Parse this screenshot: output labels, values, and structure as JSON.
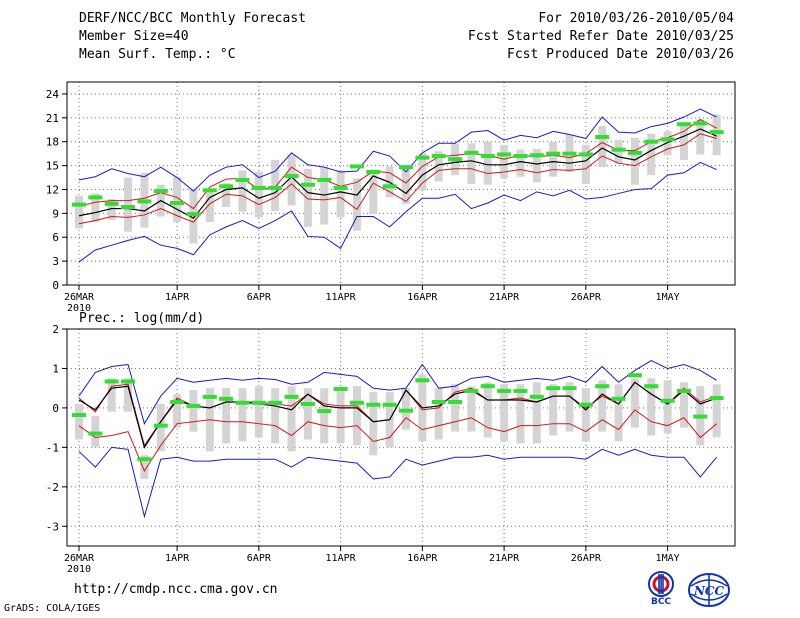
{
  "header": {
    "title": "DERF/NCC/BCC Monthly Forecast",
    "member_size": "Member Size=40",
    "variable": "Mean Surf. Temp.: °C",
    "period": "For 2010/03/26-2010/05/04",
    "started": "Fcst Started Refer Date 2010/03/25",
    "produced": "Fcst Produced Date 2010/03/26"
  },
  "footer": {
    "url": "http://cmdp.ncc.cma.gov.cn",
    "grads": "GrADS: COLA/IGES",
    "logo_bcc": "BCC",
    "logo_ncc": "NCC"
  },
  "colors": {
    "envelope": "#1a1acc",
    "bound": "#cc1a1a",
    "mean": "#000000",
    "obs": "#33dd33",
    "box": "#d4d4d4"
  },
  "chart_data": [
    {
      "type": "line",
      "title": "Mean Surf. Temp.: °C",
      "x_ticks": [
        "26MAR",
        "1APR",
        "6APR",
        "11APR",
        "16APR",
        "21APR",
        "26APR",
        "1MAY"
      ],
      "x_tick_days": [
        1,
        7,
        12,
        17,
        22,
        27,
        32,
        37
      ],
      "x_sub": "2010",
      "y_ticks": [
        0,
        3,
        6,
        9,
        12,
        15,
        18,
        21,
        24
      ],
      "ylim": [
        0,
        25.5
      ],
      "days": [
        1,
        2,
        3,
        4,
        5,
        6,
        7,
        8,
        9,
        10,
        11,
        12,
        13,
        14,
        15,
        16,
        17,
        18,
        19,
        20,
        21,
        22,
        23,
        24,
        25,
        26,
        27,
        28,
        29,
        30,
        31,
        32,
        33,
        34,
        35,
        36,
        37,
        38,
        39,
        40
      ],
      "series": [
        {
          "name": "max",
          "values": [
            13.2,
            13.6,
            14.6,
            14.0,
            13.6,
            14.8,
            13.5,
            11.8,
            13.8,
            14.8,
            15.1,
            13.5,
            14.3,
            16.6,
            15.1,
            14.8,
            14.2,
            14.3,
            16.8,
            16.2,
            14.2,
            16.6,
            17.8,
            17.8,
            19.2,
            19.4,
            18.2,
            18.8,
            18.5,
            19.3,
            18.9,
            18.4,
            21.1,
            19.2,
            19.1,
            19.9,
            20.3,
            21.1,
            22.1,
            21.1
          ]
        },
        {
          "name": "upper",
          "values": [
            9.9,
            10.4,
            10.6,
            10.6,
            10.9,
            11.6,
            11.0,
            9.6,
            12.3,
            13.3,
            13.4,
            12.0,
            12.3,
            14.8,
            13.5,
            13.2,
            12.4,
            12.9,
            14.3,
            14.1,
            12.8,
            14.9,
            16.1,
            16.3,
            16.5,
            16.3,
            15.8,
            16.3,
            16.1,
            16.3,
            16.0,
            16.5,
            17.9,
            16.9,
            16.9,
            18.0,
            18.5,
            19.3,
            20.8,
            19.7
          ]
        },
        {
          "name": "mean",
          "values": [
            8.7,
            9.1,
            9.6,
            9.6,
            9.3,
            10.6,
            9.5,
            8.4,
            11.0,
            12.0,
            12.2,
            10.9,
            11.6,
            13.6,
            11.6,
            11.3,
            11.7,
            11.3,
            13.7,
            12.9,
            11.5,
            13.8,
            15.1,
            15.4,
            15.6,
            15.1,
            15.1,
            15.5,
            15.2,
            15.5,
            15.3,
            15.6,
            17.2,
            16.1,
            15.7,
            16.9,
            17.9,
            18.7,
            19.6,
            18.7
          ]
        },
        {
          "name": "lower",
          "values": [
            7.7,
            8.1,
            8.6,
            8.5,
            8.8,
            9.6,
            8.7,
            7.9,
            10.2,
            11.4,
            11.2,
            10.1,
            11.0,
            12.7,
            10.8,
            10.7,
            11.0,
            9.5,
            12.8,
            11.7,
            10.5,
            12.8,
            14.4,
            14.6,
            14.6,
            14.0,
            14.2,
            14.5,
            14.1,
            14.5,
            14.4,
            14.6,
            16.2,
            15.3,
            15.0,
            16.1,
            17.1,
            17.6,
            19.0,
            18.4
          ]
        },
        {
          "name": "min",
          "values": [
            2.9,
            4.4,
            5.0,
            5.6,
            6.1,
            5.0,
            4.6,
            3.8,
            6.3,
            7.3,
            8.1,
            7.1,
            8.1,
            9.3,
            6.1,
            6.0,
            4.6,
            8.6,
            8.6,
            7.3,
            9.2,
            10.9,
            10.9,
            11.4,
            9.6,
            10.3,
            11.3,
            10.6,
            11.7,
            11.2,
            11.9,
            10.8,
            11.0,
            11.5,
            12.0,
            12.1,
            13.8,
            14.1,
            15.4,
            14.5
          ]
        },
        {
          "name": "box_high",
          "values": [
            11.2,
            11.5,
            10.8,
            13.5,
            14.1,
            12.6,
            13.6,
            12.1,
            12.0,
            12.8,
            14.4,
            14.2,
            15.7,
            16.4,
            14.6,
            14.9,
            14.4,
            13.4,
            14.5,
            14.9,
            15.1,
            16.6,
            16.8,
            17.8,
            17.8,
            18.0,
            17.6,
            17.0,
            17.1,
            18.0,
            18.9,
            17.6,
            20.0,
            18.2,
            18.5,
            19.0,
            19.3,
            20.2,
            20.8,
            21.4
          ]
        },
        {
          "name": "box_low",
          "values": [
            7.1,
            7.9,
            8.2,
            6.7,
            7.2,
            8.6,
            7.9,
            5.2,
            7.9,
            9.8,
            9.2,
            8.5,
            9.3,
            10.0,
            7.3,
            7.6,
            8.5,
            6.8,
            8.9,
            11.0,
            10.2,
            11.9,
            13.0,
            13.8,
            12.7,
            12.6,
            13.4,
            13.6,
            12.9,
            13.6,
            14.2,
            12.7,
            14.8,
            15.2,
            12.6,
            13.8,
            16.3,
            15.7,
            16.4,
            16.3
          ]
        },
        {
          "name": "observed",
          "values": [
            10.1,
            11.0,
            10.2,
            9.8,
            10.5,
            11.8,
            10.3,
            8.9,
            11.9,
            12.4,
            13.2,
            12.2,
            12.2,
            13.7,
            12.6,
            13.2,
            12.2,
            14.9,
            14.2,
            12.4,
            14.8,
            16.0,
            16.2,
            15.8,
            16.6,
            16.2,
            16.4,
            16.2,
            16.3,
            16.5,
            16.5,
            16.4,
            18.6,
            17.0,
            16.6,
            18.0,
            18.3,
            20.2,
            20.3,
            19.2
          ]
        }
      ]
    },
    {
      "type": "line",
      "title": "Prec.: log(mm/d)",
      "x_ticks": [
        "26MAR",
        "1APR",
        "6APR",
        "11APR",
        "16APR",
        "21APR",
        "26APR",
        "1MAY"
      ],
      "x_tick_days": [
        1,
        7,
        12,
        17,
        22,
        27,
        32,
        37
      ],
      "x_sub": "2010",
      "y_ticks": [
        -3,
        -2,
        -1,
        0,
        1,
        2
      ],
      "ylim": [
        -3.5,
        2
      ],
      "days": [
        1,
        2,
        3,
        4,
        5,
        6,
        7,
        8,
        9,
        10,
        11,
        12,
        13,
        14,
        15,
        16,
        17,
        18,
        19,
        20,
        21,
        22,
        23,
        24,
        25,
        26,
        27,
        28,
        29,
        30,
        31,
        32,
        33,
        34,
        35,
        36,
        37,
        38,
        39,
        40
      ],
      "series": [
        {
          "name": "max",
          "values": [
            0.3,
            0.9,
            1.05,
            1.1,
            -0.4,
            0.3,
            0.75,
            0.65,
            0.7,
            0.75,
            0.7,
            0.75,
            0.72,
            0.6,
            0.65,
            0.9,
            0.85,
            0.8,
            0.5,
            0.45,
            0.5,
            1.1,
            0.5,
            0.55,
            0.75,
            0.8,
            0.65,
            0.7,
            0.75,
            0.7,
            0.8,
            0.65,
            1.05,
            0.65,
            0.95,
            1.2,
            1.0,
            1.1,
            0.95,
            0.7
          ]
        },
        {
          "name": "upper",
          "values": [
            0.25,
            -0.1,
            0.55,
            0.6,
            -0.95,
            -0.35,
            0.25,
            0.05,
            0.0,
            0.15,
            0.15,
            0.15,
            0.1,
            0.05,
            0.35,
            0.1,
            0.05,
            0.05,
            -0.35,
            -0.3,
            0.45,
            -0.05,
            0.0,
            0.4,
            0.5,
            0.2,
            0.2,
            0.25,
            0.15,
            0.3,
            0.3,
            0.0,
            0.3,
            0.1,
            0.65,
            0.35,
            0.1,
            0.5,
            0.15,
            0.3
          ]
        },
        {
          "name": "mean",
          "values": [
            0.2,
            -0.05,
            0.5,
            0.55,
            -1.0,
            -0.35,
            0.2,
            0.05,
            0.0,
            0.15,
            0.15,
            0.1,
            0.05,
            -0.05,
            0.35,
            0.05,
            0.0,
            0.0,
            -0.35,
            -0.3,
            0.45,
            0.0,
            0.05,
            0.35,
            0.45,
            0.2,
            0.2,
            0.2,
            0.15,
            0.3,
            0.3,
            -0.05,
            0.35,
            0.1,
            0.65,
            0.35,
            0.1,
            0.45,
            0.1,
            0.25
          ]
        },
        {
          "name": "lower",
          "values": [
            -0.45,
            -0.75,
            -0.7,
            -0.6,
            -1.6,
            -0.95,
            -0.4,
            -0.35,
            -0.3,
            -0.35,
            -0.35,
            -0.4,
            -0.45,
            -0.7,
            -0.35,
            -0.45,
            -0.5,
            -0.45,
            -0.85,
            -0.75,
            -0.25,
            -0.55,
            -0.45,
            -0.35,
            -0.25,
            -0.5,
            -0.6,
            -0.45,
            -0.45,
            -0.4,
            -0.4,
            -0.6,
            -0.3,
            -0.55,
            -0.05,
            -0.35,
            -0.45,
            -0.25,
            -0.75,
            -0.4
          ]
        },
        {
          "name": "min",
          "values": [
            -1.1,
            -1.5,
            -1.0,
            -1.05,
            -2.75,
            -1.3,
            -1.25,
            -1.35,
            -1.35,
            -1.3,
            -1.3,
            -1.3,
            -1.3,
            -1.5,
            -1.25,
            -1.3,
            -1.35,
            -1.4,
            -1.8,
            -1.75,
            -1.3,
            -1.45,
            -1.35,
            -1.25,
            -1.25,
            -1.2,
            -1.3,
            -1.25,
            -1.25,
            -1.25,
            -1.25,
            -1.3,
            -1.05,
            -1.2,
            -1.05,
            -1.2,
            -1.25,
            -1.25,
            -1.75,
            -1.25
          ]
        },
        {
          "name": "box_high",
          "values": [
            0.1,
            -0.2,
            0.75,
            0.75,
            -1.2,
            0.1,
            0.35,
            0.45,
            0.5,
            0.5,
            0.5,
            0.55,
            0.5,
            0.55,
            0.5,
            0.5,
            0.5,
            0.55,
            0.4,
            0.4,
            0.5,
            0.85,
            0.5,
            0.6,
            0.55,
            0.65,
            0.6,
            0.6,
            0.65,
            0.6,
            0.65,
            0.5,
            0.7,
            0.6,
            0.75,
            0.75,
            0.7,
            0.65,
            0.55,
            0.6
          ]
        },
        {
          "name": "box_low",
          "values": [
            -0.8,
            -1.0,
            -0.1,
            -0.1,
            -1.8,
            -1.1,
            -0.5,
            -0.6,
            -1.1,
            -0.9,
            -0.85,
            -0.75,
            -0.9,
            -1.1,
            -0.8,
            -0.9,
            -0.9,
            -0.95,
            -1.2,
            -1.0,
            -0.55,
            -0.85,
            -0.8,
            -0.6,
            -0.6,
            -0.75,
            -0.85,
            -0.9,
            -0.9,
            -0.7,
            -0.6,
            -0.85,
            -0.6,
            -0.85,
            -0.5,
            -0.7,
            -0.65,
            -0.5,
            -0.95,
            -0.75
          ]
        },
        {
          "name": "observed",
          "values": [
            -0.18,
            -0.65,
            0.67,
            0.67,
            -1.3,
            -0.45,
            0.15,
            0.05,
            0.28,
            0.23,
            0.13,
            0.13,
            0.13,
            0.28,
            0.1,
            -0.08,
            0.48,
            0.13,
            0.08,
            0.08,
            -0.07,
            0.7,
            0.15,
            0.15,
            0.43,
            0.55,
            0.43,
            0.43,
            0.28,
            0.5,
            0.5,
            0.08,
            0.55,
            0.23,
            0.83,
            0.55,
            0.18,
            0.43,
            -0.22,
            0.25
          ]
        }
      ]
    }
  ]
}
